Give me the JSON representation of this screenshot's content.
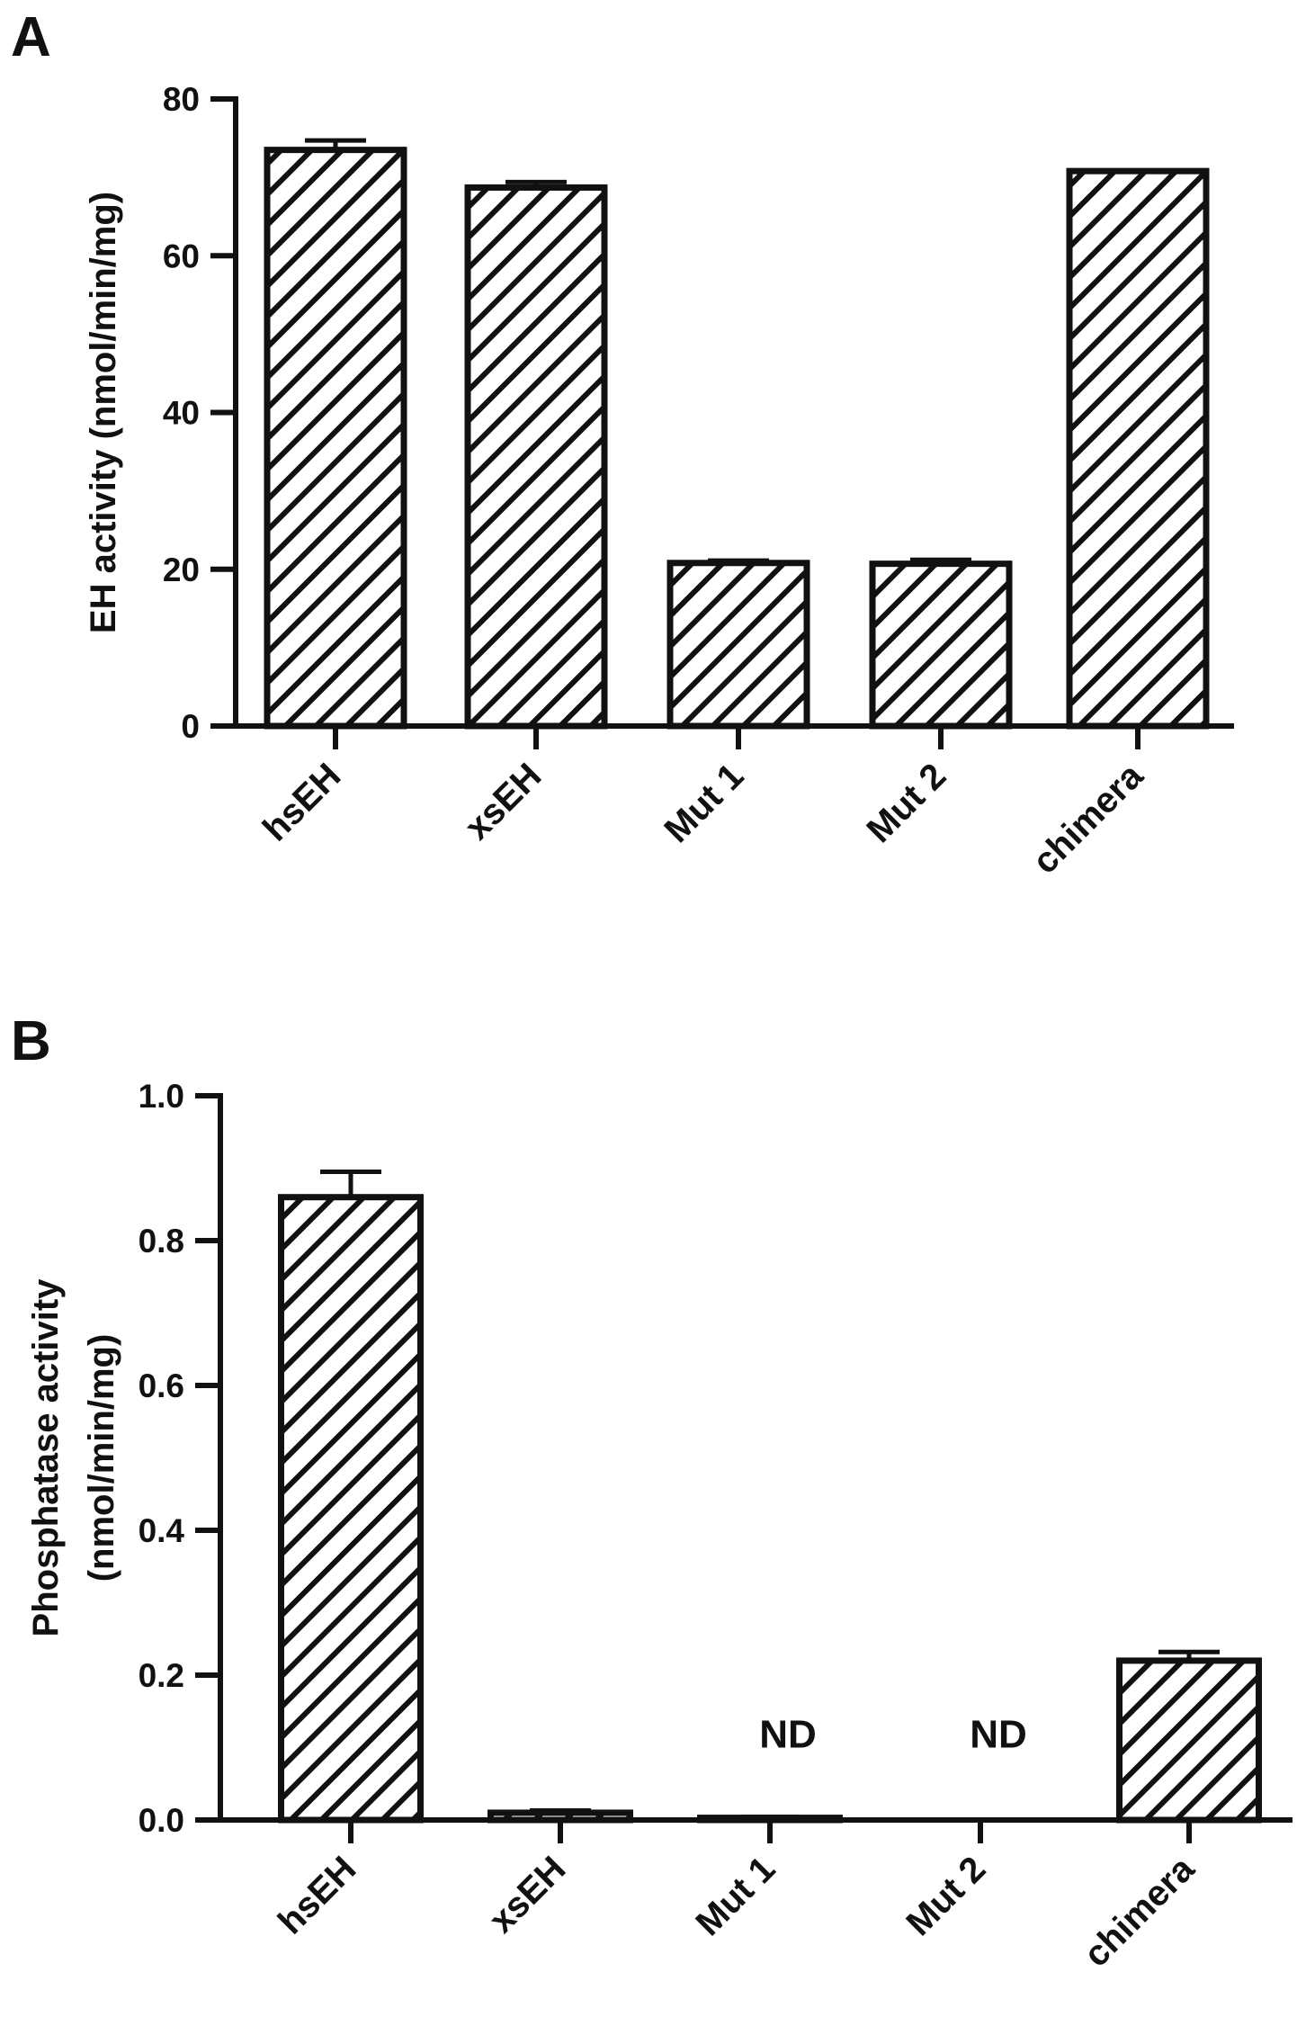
{
  "chart_data": [
    {
      "type": "bar",
      "panel_label": "A",
      "categories": [
        "hsEH",
        "xsEH",
        "Mut 1",
        "Mut 2",
        "chimera"
      ],
      "values": [
        73.5,
        68.7,
        20.8,
        20.7,
        70.8
      ],
      "errors": [
        1.2,
        0.7,
        0.3,
        0.5,
        0
      ],
      "ylabel": "EH activity (nmol/min/mg)",
      "ylabel_lines": [
        "EH activity (nmol/min/mg)"
      ],
      "ylim": [
        0,
        80
      ],
      "yticks": [
        0,
        20,
        40,
        60,
        80
      ],
      "ytick_labels": [
        "0",
        "20",
        "40",
        "60",
        "80"
      ],
      "annotations": [
        "",
        "",
        "",
        "",
        ""
      ],
      "grid": false,
      "bar_fill": "diagonal-hatch",
      "color": "#111111"
    },
    {
      "type": "bar",
      "panel_label": "B",
      "categories": [
        "hsEH",
        "xsEH",
        "Mut 1",
        "Mut 2",
        "chimera"
      ],
      "values": [
        0.86,
        0.01,
        0.003,
        0,
        0.22
      ],
      "errors": [
        0.035,
        0.003,
        0.001,
        0,
        0.012
      ],
      "ylabel": "Phosphatase activity (nmol/min/mg)",
      "ylabel_lines": [
        "Phosphatase activity",
        "(nmol/min/mg)"
      ],
      "ylim": [
        0,
        1.0
      ],
      "yticks": [
        0,
        0.2,
        0.4,
        0.6,
        0.8,
        1.0
      ],
      "ytick_labels": [
        "0.0",
        "0.2",
        "0.4",
        "0.6",
        "0.8",
        "1.0"
      ],
      "annotations": [
        "",
        "",
        "ND",
        "ND",
        ""
      ],
      "grid": false,
      "bar_fill": "diagonal-hatch",
      "color": "#111111"
    }
  ]
}
